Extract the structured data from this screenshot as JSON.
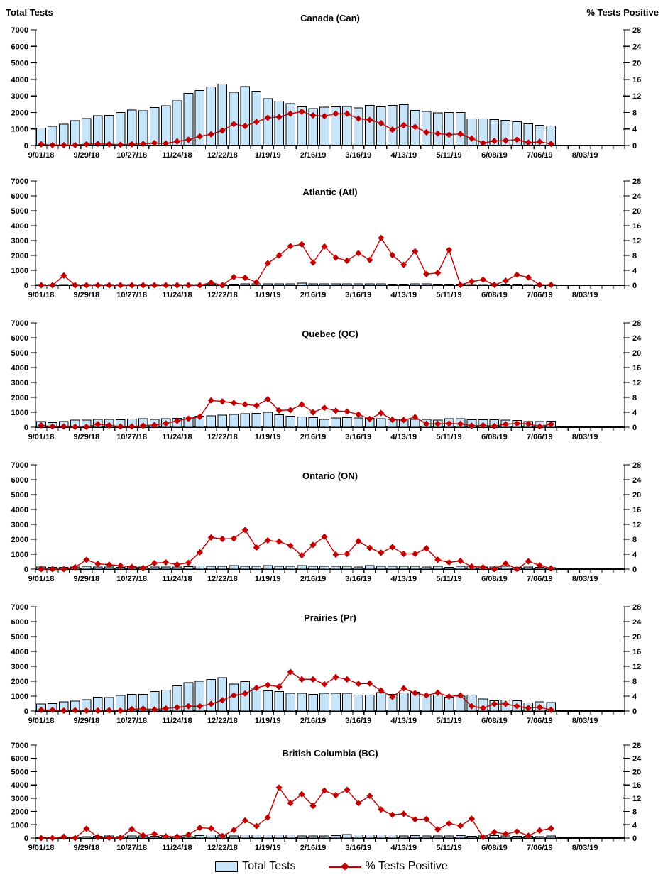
{
  "axis": {
    "left_title": "Total Tests",
    "right_title": "% Tests Positive",
    "left_tick_labels": [
      "0",
      "1000",
      "2000",
      "3000",
      "4000",
      "5000",
      "6000",
      "7000"
    ],
    "right_tick_labels": [
      "0",
      "4",
      "8",
      "12",
      "16",
      "20",
      "24",
      "28"
    ],
    "x_tick_labels": [
      "9/01/18",
      "9/29/18",
      "10/27/18",
      "11/24/18",
      "12/22/18",
      "1/19/19",
      "2/16/19",
      "3/16/19",
      "4/13/19",
      "5/11/19",
      "6/08/19",
      "7/06/19",
      "8/03/19"
    ]
  },
  "legend": {
    "items": [
      {
        "label": "Total Tests",
        "marker": "bar-swatch-icon",
        "color": "#C8E4F8"
      },
      {
        "label": "% Tests Positive",
        "marker": "line-diamond-swatch-icon",
        "color": "#C00000"
      }
    ]
  },
  "colors": {
    "bar_fill": "#C8E4F8",
    "bar_stroke": "#000000",
    "line_color": "#C00000",
    "text_color": "#000000"
  },
  "chart_data": {
    "type": "bar",
    "subtype": "combo-bar-line-small-multiples",
    "ylabel_left": "Total Tests",
    "ylabel_right": "% Tests Positive",
    "ylim_left": [
      0,
      7000
    ],
    "ylim_right": [
      0,
      28
    ],
    "grid": false,
    "legend_position": "bottom-center",
    "x_axis_weeks_shown": 52,
    "x_major_tick_labels": [
      "9/01/18",
      "9/29/18",
      "10/27/18",
      "11/24/18",
      "12/22/18",
      "1/19/19",
      "2/16/19",
      "3/16/19",
      "4/13/19",
      "5/11/19",
      "6/08/19",
      "7/06/19",
      "8/03/19"
    ],
    "categories": [
      "9/01/18",
      "9/08/18",
      "9/15/18",
      "9/22/18",
      "9/29/18",
      "10/06/18",
      "10/13/18",
      "10/20/18",
      "10/27/18",
      "11/03/18",
      "11/10/18",
      "11/17/18",
      "11/24/18",
      "12/01/18",
      "12/08/18",
      "12/15/18",
      "12/22/18",
      "12/29/18",
      "1/05/19",
      "1/12/19",
      "1/19/19",
      "1/26/19",
      "2/02/19",
      "2/09/19",
      "2/16/19",
      "2/23/19",
      "3/02/19",
      "3/09/19",
      "3/16/19",
      "3/23/19",
      "3/30/19",
      "4/06/19",
      "4/13/19",
      "4/20/19",
      "4/27/19",
      "5/04/19",
      "5/11/19",
      "5/18/19",
      "5/25/19",
      "6/01/19",
      "6/08/19",
      "6/15/19",
      "6/22/19",
      "6/29/19",
      "7/06/19",
      "7/13/19"
    ],
    "panels": [
      {
        "title": "Canada (Can)",
        "series": [
          {
            "name": "Total Tests",
            "type": "bar",
            "axis": "left",
            "values": [
              1050,
              1150,
              1280,
              1500,
              1640,
              1800,
              1820,
              2000,
              2150,
              2100,
              2300,
              2400,
              2700,
              3150,
              3320,
              3550,
              3720,
              3230,
              3560,
              3280,
              2830,
              2680,
              2530,
              2350,
              2230,
              2320,
              2350,
              2360,
              2280,
              2430,
              2350,
              2420,
              2480,
              2130,
              2070,
              1970,
              2000,
              2000,
              1620,
              1610,
              1560,
              1520,
              1430,
              1310,
              1220,
              1180
            ]
          },
          {
            "name": "% Tests Positive",
            "type": "line",
            "axis": "right",
            "values": [
              0.3,
              0.1,
              0.1,
              0.1,
              0.3,
              0.4,
              0.3,
              0.2,
              0.3,
              0.4,
              0.6,
              0.5,
              1.0,
              1.4,
              2.2,
              2.7,
              3.6,
              5.2,
              4.7,
              5.7,
              6.7,
              6.9,
              7.7,
              8.2,
              7.3,
              7.1,
              7.7,
              7.7,
              6.5,
              6.2,
              5.4,
              3.8,
              4.9,
              4.5,
              3.2,
              2.9,
              2.6,
              2.8,
              1.7,
              0.6,
              1.1,
              1.2,
              1.4,
              0.7,
              0.9,
              0.4
            ]
          }
        ]
      },
      {
        "title": "Atlantic (Atl)",
        "series": [
          {
            "name": "Total Tests",
            "type": "bar",
            "axis": "left",
            "values": [
              30,
              30,
              30,
              30,
              30,
              30,
              30,
              30,
              30,
              40,
              40,
              50,
              40,
              40,
              50,
              60,
              50,
              60,
              90,
              100,
              100,
              90,
              90,
              150,
              100,
              90,
              90,
              90,
              90,
              90,
              90,
              80,
              80,
              90,
              100,
              80,
              80,
              60,
              50,
              50,
              40,
              60,
              60,
              50,
              40,
              40
            ]
          },
          {
            "name": "% Tests Positive",
            "type": "line",
            "axis": "right",
            "values": [
              0,
              0,
              2.6,
              0,
              0,
              0,
              0,
              0,
              0,
              0,
              0,
              0,
              0,
              0,
              0,
              0.7,
              0,
              2.2,
              2.0,
              0.8,
              5.9,
              8.0,
              10.5,
              11.0,
              6.1,
              10.4,
              7.4,
              6.6,
              8.6,
              6.8,
              12.7,
              8.1,
              5.5,
              9.1,
              3.0,
              3.3,
              9.5,
              0.1,
              1.0,
              1.5,
              0.1,
              1.2,
              2.8,
              2.1,
              0.1,
              0.1
            ]
          }
        ]
      },
      {
        "title": "Quebec (QC)",
        "series": [
          {
            "name": "Total Tests",
            "type": "bar",
            "axis": "left",
            "values": [
              380,
              320,
              390,
              480,
              470,
              520,
              520,
              490,
              540,
              570,
              520,
              570,
              600,
              680,
              730,
              770,
              820,
              850,
              900,
              920,
              1000,
              830,
              740,
              680,
              640,
              530,
              620,
              640,
              620,
              600,
              560,
              530,
              550,
              530,
              520,
              480,
              560,
              580,
              490,
              500,
              500,
              480,
              450,
              380,
              380,
              400
            ]
          },
          {
            "name": "% Tests Positive",
            "type": "line",
            "axis": "right",
            "values": [
              0.5,
              0.2,
              0.2,
              0.1,
              0.1,
              0.8,
              0.5,
              0.2,
              0.2,
              0.4,
              0.6,
              1.0,
              1.7,
              2.3,
              2.8,
              7.2,
              6.9,
              6.5,
              6.1,
              5.8,
              7.5,
              4.5,
              4.6,
              6.1,
              4.0,
              5.2,
              4.4,
              4.2,
              3.4,
              2.2,
              3.8,
              2.0,
              1.9,
              2.7,
              0.9,
              0.9,
              1.0,
              0.9,
              0.4,
              0.5,
              0.3,
              0.8,
              1.0,
              0.9,
              0.2,
              0.8
            ]
          }
        ]
      },
      {
        "title": "Ontario (ON)",
        "series": [
          {
            "name": "Total Tests",
            "type": "bar",
            "axis": "left",
            "values": [
              150,
              120,
              130,
              150,
              180,
              150,
              150,
              130,
              180,
              150,
              140,
              150,
              150,
              160,
              220,
              180,
              180,
              230,
              180,
              180,
              230,
              180,
              180,
              250,
              180,
              200,
              200,
              200,
              150,
              250,
              200,
              200,
              200,
              180,
              150,
              180,
              130,
              200,
              180,
              150,
              150,
              180,
              130,
              150,
              130,
              100
            ]
          },
          {
            "name": "% Tests Positive",
            "type": "line",
            "axis": "right",
            "values": [
              0,
              0,
              0,
              0.5,
              2.5,
              1.4,
              1.2,
              0.9,
              0.6,
              0.3,
              1.6,
              1.8,
              1.2,
              1.7,
              4.5,
              8.5,
              8.1,
              8.2,
              10.5,
              5.8,
              7.7,
              7.4,
              6.3,
              3.7,
              6.5,
              8.7,
              3.9,
              4.1,
              7.5,
              5.7,
              4.4,
              5.9,
              4.1,
              4.1,
              5.6,
              2.5,
              1.8,
              2.2,
              0.7,
              0.5,
              0,
              1.5,
              0,
              2.1,
              1.0,
              0.2
            ]
          }
        ]
      },
      {
        "title": "Prairies (Pr)",
        "series": [
          {
            "name": "Total Tests",
            "type": "bar",
            "axis": "left",
            "values": [
              480,
              490,
              620,
              660,
              760,
              920,
              900,
              1040,
              1130,
              1130,
              1310,
              1400,
              1680,
              1900,
              2000,
              2130,
              2230,
              1800,
              1980,
              1550,
              1360,
              1310,
              1180,
              1180,
              1130,
              1180,
              1180,
              1180,
              1080,
              1080,
              1230,
              1130,
              1210,
              1260,
              1060,
              1080,
              920,
              1000,
              1060,
              800,
              700,
              740,
              700,
              540,
              620,
              560
            ]
          },
          {
            "name": "% Tests Positive",
            "type": "line",
            "axis": "right",
            "values": [
              0.3,
              0.3,
              0.1,
              0.2,
              0.1,
              0.1,
              0.2,
              0.1,
              0.5,
              0.6,
              0.4,
              0.7,
              1.0,
              1.3,
              1.3,
              1.9,
              2.9,
              4.2,
              4.7,
              6.2,
              7.0,
              6.5,
              10.5,
              8.5,
              8.5,
              7.2,
              9.1,
              8.5,
              7.3,
              7.4,
              5.5,
              3.8,
              6.1,
              4.8,
              4.2,
              4.9,
              3.9,
              4.2,
              1.3,
              0.8,
              1.9,
              1.9,
              1.3,
              0.8,
              1.0,
              0.3
            ]
          }
        ]
      },
      {
        "title": "British Columbia (BC)",
        "series": [
          {
            "name": "Total Tests",
            "type": "bar",
            "axis": "left",
            "values": [
              60,
              60,
              70,
              80,
              100,
              140,
              150,
              100,
              150,
              150,
              140,
              100,
              100,
              120,
              190,
              240,
              220,
              150,
              230,
              230,
              230,
              250,
              230,
              160,
              160,
              160,
              200,
              280,
              230,
              230,
              230,
              230,
              160,
              200,
              160,
              160,
              150,
              180,
              130,
              150,
              200,
              150,
              130,
              140,
              120,
              150
            ]
          },
          {
            "name": "% Tests Positive",
            "type": "line",
            "axis": "right",
            "values": [
              0,
              0,
              0.4,
              0,
              2.8,
              0.3,
              0.1,
              0.1,
              2.7,
              0.8,
              1.2,
              0.5,
              0.4,
              1.0,
              3.1,
              2.9,
              0.6,
              2.4,
              5.3,
              3.6,
              6.2,
              15.2,
              10.5,
              13.2,
              9.7,
              14.3,
              12.9,
              14.5,
              10.5,
              12.7,
              8.6,
              7.0,
              7.3,
              5.6,
              5.7,
              2.6,
              4.4,
              3.7,
              5.8,
              0.3,
              1.8,
              1.2,
              2.0,
              0.7,
              2.3,
              2.9
            ]
          }
        ]
      }
    ]
  }
}
